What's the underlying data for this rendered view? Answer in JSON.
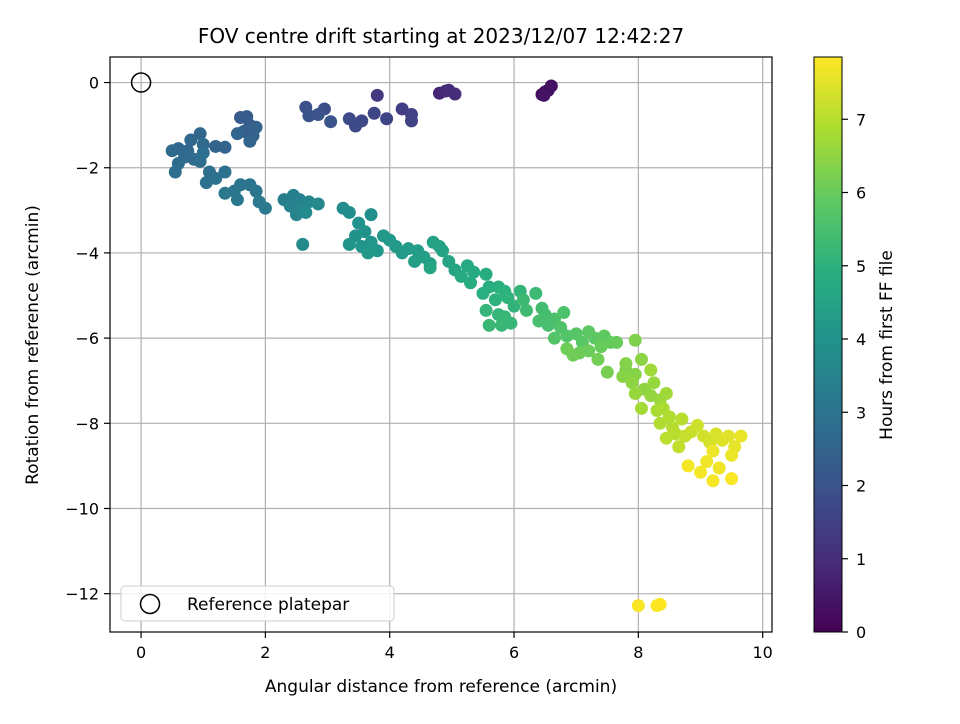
{
  "chart_data": {
    "type": "scatter",
    "title": "FOV centre drift starting at 2023/12/07 12:42:27",
    "xlabel": "Angular distance from reference (arcmin)",
    "ylabel": "Rotation from reference (arcmin)",
    "xlim": [
      -0.5,
      10.15
    ],
    "ylim": [
      -12.9,
      0.6
    ],
    "xticks": [
      0,
      2,
      4,
      6,
      8,
      10
    ],
    "xtick_labels": [
      "0",
      "2",
      "4",
      "6",
      "8",
      "10"
    ],
    "yticks": [
      0,
      -2,
      -4,
      -6,
      -8,
      -10,
      -12
    ],
    "ytick_labels": [
      "0",
      "−2",
      "−4",
      "−6",
      "−8",
      "−10",
      "−12"
    ],
    "grid": true,
    "legend": {
      "placement": "lower-left",
      "entries": [
        "Reference platepar"
      ]
    },
    "reference_point": {
      "x": 0,
      "y": 0,
      "marker": "open-circle"
    },
    "colorbar": {
      "label": "Hours from first FF file",
      "colormap": "viridis",
      "range": [
        0,
        7.85
      ],
      "ticks": [
        0,
        1,
        2,
        3,
        4,
        5,
        6,
        7
      ],
      "tick_labels": [
        "0",
        "1",
        "2",
        "3",
        "4",
        "5",
        "6",
        "7"
      ]
    },
    "series": [
      {
        "points": [
          [
            6.45,
            -0.28,
            0.2
          ],
          [
            6.5,
            -0.22,
            0.25
          ],
          [
            6.55,
            -0.18,
            0.3
          ],
          [
            6.6,
            -0.08,
            0.35
          ],
          [
            6.48,
            -0.3,
            0.4
          ],
          [
            4.8,
            -0.25,
            0.8
          ],
          [
            4.9,
            -0.2,
            0.9
          ],
          [
            5.05,
            -0.27,
            1.0
          ],
          [
            4.95,
            -0.18,
            0.95
          ],
          [
            3.8,
            -0.3,
            1.3
          ],
          [
            4.2,
            -0.62,
            1.4
          ],
          [
            4.35,
            -0.75,
            1.5
          ],
          [
            4.35,
            -0.9,
            1.55
          ],
          [
            3.95,
            -0.85,
            1.6
          ],
          [
            3.75,
            -0.72,
            1.65
          ],
          [
            3.55,
            -0.9,
            1.7
          ],
          [
            3.45,
            -1.02,
            1.75
          ],
          [
            3.35,
            -0.85,
            1.8
          ],
          [
            2.95,
            -0.62,
            1.85
          ],
          [
            2.65,
            -0.58,
            1.9
          ],
          [
            2.85,
            -0.75,
            1.95
          ],
          [
            2.7,
            -0.78,
            2.0
          ],
          [
            3.05,
            -0.92,
            2.05
          ],
          [
            1.6,
            -0.82,
            2.2
          ],
          [
            1.7,
            -0.8,
            2.25
          ],
          [
            1.75,
            -1.0,
            2.3
          ],
          [
            1.65,
            -1.15,
            2.35
          ],
          [
            1.8,
            -1.25,
            2.4
          ],
          [
            1.85,
            -1.05,
            2.45
          ],
          [
            1.55,
            -1.2,
            2.5
          ],
          [
            1.75,
            -1.38,
            2.55
          ],
          [
            1.35,
            -1.52,
            2.5
          ],
          [
            1.2,
            -1.5,
            2.55
          ],
          [
            0.95,
            -1.2,
            2.6
          ],
          [
            0.8,
            -1.35,
            2.6
          ],
          [
            0.6,
            -1.55,
            2.65
          ],
          [
            0.75,
            -1.6,
            2.65
          ],
          [
            1.0,
            -1.45,
            2.7
          ],
          [
            0.5,
            -1.6,
            2.7
          ],
          [
            0.7,
            -1.75,
            2.75
          ],
          [
            0.85,
            -1.8,
            2.75
          ],
          [
            0.95,
            -1.85,
            2.8
          ],
          [
            0.6,
            -1.9,
            2.8
          ],
          [
            0.55,
            -2.1,
            2.85
          ],
          [
            1.0,
            -1.65,
            2.85
          ],
          [
            1.1,
            -2.1,
            2.9
          ],
          [
            1.2,
            -2.25,
            2.9
          ],
          [
            1.35,
            -2.1,
            2.95
          ],
          [
            1.05,
            -2.35,
            2.95
          ],
          [
            1.6,
            -2.4,
            3.0
          ],
          [
            1.75,
            -2.4,
            3.0
          ],
          [
            1.85,
            -2.55,
            3.05
          ],
          [
            1.5,
            -2.55,
            3.05
          ],
          [
            1.35,
            -2.6,
            3.1
          ],
          [
            1.55,
            -2.75,
            3.1
          ],
          [
            1.9,
            -2.8,
            3.15
          ],
          [
            2.0,
            -2.95,
            3.15
          ],
          [
            2.3,
            -2.75,
            3.3
          ],
          [
            2.45,
            -2.65,
            3.35
          ],
          [
            2.55,
            -2.75,
            3.4
          ],
          [
            2.4,
            -2.9,
            3.45
          ],
          [
            2.5,
            -3.1,
            3.5
          ],
          [
            2.6,
            -2.95,
            3.55
          ],
          [
            2.7,
            -2.8,
            3.6
          ],
          [
            2.85,
            -2.85,
            3.65
          ],
          [
            2.65,
            -3.05,
            3.7
          ],
          [
            2.6,
            -3.8,
            3.7
          ],
          [
            3.25,
            -2.95,
            3.8
          ],
          [
            3.35,
            -3.05,
            3.85
          ],
          [
            3.7,
            -3.1,
            3.9
          ],
          [
            3.5,
            -3.3,
            3.95
          ],
          [
            3.6,
            -3.5,
            4.0
          ],
          [
            3.45,
            -3.6,
            4.0
          ],
          [
            3.35,
            -3.8,
            4.05
          ],
          [
            3.55,
            -3.85,
            4.05
          ],
          [
            3.7,
            -3.75,
            4.1
          ],
          [
            3.8,
            -3.95,
            4.1
          ],
          [
            3.65,
            -4.0,
            4.15
          ],
          [
            3.9,
            -3.6,
            4.15
          ],
          [
            4.0,
            -3.7,
            4.2
          ],
          [
            4.1,
            -3.85,
            4.2
          ],
          [
            4.2,
            -4.0,
            4.25
          ],
          [
            4.3,
            -3.9,
            4.25
          ],
          [
            4.45,
            -3.95,
            4.3
          ],
          [
            4.55,
            -4.1,
            4.35
          ],
          [
            4.4,
            -4.2,
            4.35
          ],
          [
            4.65,
            -4.25,
            4.4
          ],
          [
            4.7,
            -3.75,
            4.45
          ],
          [
            4.8,
            -3.85,
            4.5
          ],
          [
            4.85,
            -3.95,
            4.5
          ],
          [
            4.95,
            -4.2,
            4.55
          ],
          [
            5.05,
            -4.4,
            4.6
          ],
          [
            4.65,
            -4.35,
            4.6
          ],
          [
            5.25,
            -4.3,
            4.7
          ],
          [
            5.35,
            -4.45,
            4.75
          ],
          [
            5.15,
            -4.55,
            4.75
          ],
          [
            5.3,
            -4.7,
            4.8
          ],
          [
            5.55,
            -4.5,
            4.85
          ],
          [
            5.6,
            -4.8,
            4.9
          ],
          [
            5.5,
            -4.95,
            4.9
          ],
          [
            5.75,
            -4.8,
            4.95
          ],
          [
            5.85,
            -4.9,
            5.0
          ],
          [
            5.7,
            -5.1,
            5.0
          ],
          [
            5.9,
            -5.05,
            5.05
          ],
          [
            6.1,
            -4.9,
            5.1
          ],
          [
            6.0,
            -5.25,
            5.1
          ],
          [
            5.55,
            -5.35,
            5.15
          ],
          [
            5.75,
            -5.45,
            5.15
          ],
          [
            5.85,
            -5.5,
            5.2
          ],
          [
            5.95,
            -5.65,
            5.2
          ],
          [
            5.8,
            -5.7,
            5.25
          ],
          [
            5.6,
            -5.7,
            5.25
          ],
          [
            6.15,
            -5.1,
            5.3
          ],
          [
            6.35,
            -4.95,
            5.3
          ],
          [
            6.2,
            -5.35,
            5.35
          ],
          [
            6.45,
            -5.3,
            5.4
          ],
          [
            6.5,
            -5.45,
            5.45
          ],
          [
            6.4,
            -5.6,
            5.5
          ],
          [
            6.55,
            -5.7,
            5.5
          ],
          [
            6.65,
            -5.55,
            5.55
          ],
          [
            6.8,
            -5.4,
            5.6
          ],
          [
            6.75,
            -5.75,
            5.65
          ],
          [
            6.85,
            -5.95,
            5.7
          ],
          [
            6.65,
            -6.0,
            5.7
          ],
          [
            7.0,
            -5.9,
            5.75
          ],
          [
            7.1,
            -6.1,
            5.8
          ],
          [
            7.2,
            -5.85,
            5.85
          ],
          [
            7.3,
            -6.0,
            5.85
          ],
          [
            7.45,
            -5.95,
            5.9
          ],
          [
            7.55,
            -6.1,
            5.95
          ],
          [
            7.65,
            -6.1,
            6.0
          ],
          [
            7.4,
            -6.2,
            6.0
          ],
          [
            7.2,
            -6.3,
            6.05
          ],
          [
            7.05,
            -6.35,
            6.05
          ],
          [
            6.95,
            -6.4,
            6.1
          ],
          [
            6.85,
            -6.25,
            6.1
          ],
          [
            7.35,
            -6.5,
            6.15
          ],
          [
            7.5,
            -6.8,
            6.2
          ],
          [
            7.8,
            -6.75,
            6.25
          ],
          [
            7.95,
            -6.05,
            6.3
          ],
          [
            7.8,
            -6.6,
            6.35
          ],
          [
            7.75,
            -6.9,
            6.4
          ],
          [
            7.95,
            -6.85,
            6.4
          ],
          [
            8.05,
            -6.5,
            6.45
          ],
          [
            7.9,
            -7.05,
            6.5
          ],
          [
            8.1,
            -7.2,
            6.5
          ],
          [
            8.2,
            -7.35,
            6.55
          ],
          [
            7.95,
            -7.3,
            6.6
          ],
          [
            8.25,
            -7.05,
            6.6
          ],
          [
            8.35,
            -7.45,
            6.65
          ],
          [
            8.45,
            -7.3,
            6.7
          ],
          [
            8.2,
            -6.75,
            6.7
          ],
          [
            8.05,
            -7.65,
            6.75
          ],
          [
            8.3,
            -7.7,
            6.8
          ],
          [
            8.4,
            -7.65,
            6.85
          ],
          [
            8.5,
            -7.85,
            6.9
          ],
          [
            8.35,
            -8.0,
            6.9
          ],
          [
            8.55,
            -8.1,
            6.95
          ],
          [
            8.7,
            -7.9,
            7.0
          ],
          [
            8.6,
            -8.25,
            7.0
          ],
          [
            8.45,
            -8.35,
            7.05
          ],
          [
            8.65,
            -8.55,
            7.1
          ],
          [
            8.75,
            -8.3,
            7.15
          ],
          [
            8.85,
            -8.2,
            7.2
          ],
          [
            8.95,
            -8.05,
            7.25
          ],
          [
            9.05,
            -8.3,
            7.3
          ],
          [
            9.15,
            -8.45,
            7.35
          ],
          [
            9.25,
            -8.25,
            7.4
          ],
          [
            9.35,
            -8.4,
            7.45
          ],
          [
            9.45,
            -8.3,
            7.5
          ],
          [
            9.55,
            -8.55,
            7.55
          ],
          [
            9.65,
            -8.3,
            7.6
          ],
          [
            9.5,
            -8.75,
            7.65
          ],
          [
            9.2,
            -8.65,
            7.65
          ],
          [
            9.1,
            -8.9,
            7.7
          ],
          [
            9.3,
            -9.05,
            7.7
          ],
          [
            9.0,
            -9.15,
            7.75
          ],
          [
            9.2,
            -9.35,
            7.75
          ],
          [
            9.5,
            -9.3,
            7.8
          ],
          [
            8.8,
            -9.0,
            7.75
          ],
          [
            8.0,
            -12.28,
            7.8
          ],
          [
            8.3,
            -12.28,
            7.82
          ],
          [
            8.35,
            -12.25,
            7.85
          ]
        ]
      }
    ]
  }
}
